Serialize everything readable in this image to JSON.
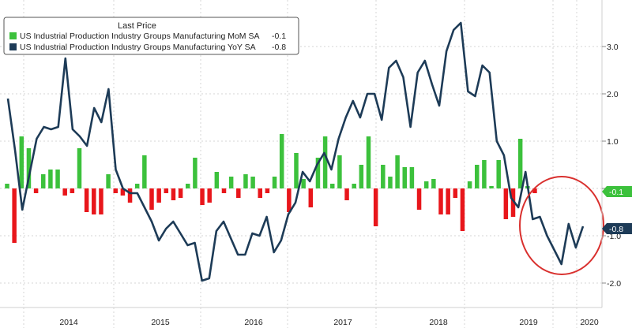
{
  "chart_data": {
    "type": "bar+line",
    "legend_title": "Last Price",
    "legend_position": "top-left",
    "series": [
      {
        "name": "US Industrial Production Industry Groups Manufacturing MoM SA",
        "last": "-0.1",
        "kind": "bar",
        "pos_color": "#3cc13c",
        "neg_color": "#e8161b",
        "values": [
          0.1,
          -1.15,
          1.1,
          0.85,
          -0.1,
          0.3,
          0.4,
          0.4,
          -0.15,
          -0.1,
          0.85,
          -0.5,
          -0.55,
          -0.55,
          0.3,
          -0.1,
          -0.15,
          -0.3,
          0.1,
          0.7,
          -0.45,
          -0.3,
          -0.1,
          -0.25,
          -0.2,
          0.1,
          0.65,
          -0.35,
          -0.3,
          0.35,
          -0.1,
          0.25,
          -0.2,
          0.3,
          0.25,
          -0.2,
          -0.1,
          0.25,
          1.15,
          -0.5,
          0.75,
          0.2,
          -0.4,
          0.65,
          1.1,
          0.1,
          0.7,
          -0.25,
          0.1,
          0.5,
          1.1,
          -0.8,
          0.5,
          0.25,
          0.7,
          0.45,
          0.45,
          -0.45,
          0.15,
          0.2,
          -0.55,
          -0.55,
          -0.2,
          -0.9,
          0.15,
          0.5,
          0.6,
          0.05,
          0.6,
          -0.65,
          -0.6,
          1.05,
          0.05,
          -0.1
        ]
      },
      {
        "name": "US Industrial Production Industry Groups Manufacturing YoY SA",
        "last": "-0.8",
        "kind": "line",
        "color": "#1d3b57",
        "values": [
          1.9,
          0.8,
          -0.45,
          0.3,
          1.05,
          1.3,
          1.25,
          1.3,
          2.75,
          1.25,
          1.1,
          0.9,
          1.7,
          1.4,
          2.1,
          0.4,
          0.0,
          -0.1,
          -0.1,
          -0.4,
          -0.7,
          -1.1,
          -0.85,
          -0.7,
          -0.95,
          -1.2,
          -1.15,
          -1.95,
          -1.9,
          -0.9,
          -0.7,
          -1.05,
          -1.4,
          -1.4,
          -0.95,
          -1.0,
          -0.6,
          -1.35,
          -1.1,
          -0.55,
          -0.3,
          0.35,
          0.15,
          0.5,
          0.75,
          0.4,
          1.05,
          1.5,
          1.85,
          1.5,
          2.0,
          2.0,
          1.45,
          2.55,
          2.7,
          2.35,
          1.3,
          2.45,
          2.7,
          2.2,
          1.75,
          2.9,
          3.35,
          3.5,
          2.05,
          1.95,
          2.6,
          2.45,
          1.0,
          0.7,
          -0.2,
          -0.4,
          0.35,
          -0.65,
          -0.6,
          -1.0,
          -1.3,
          -1.6,
          -0.75,
          -1.25,
          -0.8
        ]
      }
    ],
    "x_ticks": [
      "2014",
      "2015",
      "2016",
      "2017",
      "2018",
      "2019",
      "2020"
    ],
    "y_ticks": [
      "3.0",
      "2.0",
      "1.0",
      "0.0",
      "-1.0",
      "-2.0"
    ],
    "ylim": [
      -2.5,
      3.8
    ],
    "y_axis_side": "right",
    "last_value_tags": [
      "-0.1",
      "-0.8"
    ],
    "annotation": "red circle highlighting 2019-2020 decline"
  }
}
